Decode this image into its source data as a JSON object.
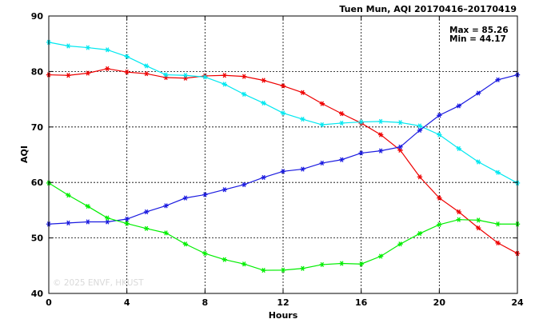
{
  "chart_data": {
    "type": "line",
    "title": "Tuen Mun, AQI 20170416–20170419",
    "stats": [
      "Max = 85.26",
      "Min = 44.17"
    ],
    "xlabel": "Hours",
    "ylabel": "AQI",
    "xlim": [
      0,
      24
    ],
    "ylim": [
      40,
      90
    ],
    "x_ticks": [
      0,
      4,
      8,
      12,
      16,
      20,
      24
    ],
    "y_ticks": [
      40,
      50,
      60,
      70,
      80,
      90
    ],
    "grid": true,
    "grid_style": "dashed",
    "marker": "asterisk",
    "watermark": "© 2025  ENVF, HKUST",
    "x": [
      0,
      1,
      2,
      3,
      4,
      5,
      6,
      7,
      8,
      9,
      10,
      11,
      12,
      13,
      14,
      15,
      16,
      17,
      18,
      19,
      20,
      21,
      22,
      23,
      24
    ],
    "series": [
      {
        "color": "#ee0000",
        "values": [
          79.4,
          79.3,
          79.7,
          80.5,
          79.9,
          79.6,
          78.9,
          78.8,
          79.2,
          79.3,
          79.1,
          78.4,
          77.4,
          76.2,
          74.2,
          72.4,
          70.7,
          68.6,
          65.8,
          61.0,
          57.2,
          54.7,
          51.8,
          49.1,
          47.2
        ]
      },
      {
        "color": "#00e8f0",
        "values": [
          85.26,
          84.6,
          84.3,
          83.9,
          82.7,
          81.0,
          79.4,
          79.3,
          79.0,
          77.7,
          75.9,
          74.3,
          72.5,
          71.4,
          70.4,
          70.7,
          70.9,
          71.0,
          70.8,
          70.2,
          68.6,
          66.1,
          63.7,
          61.8,
          59.9
        ]
      },
      {
        "color": "#1a1ae0",
        "values": [
          52.5,
          52.7,
          52.9,
          52.9,
          53.4,
          54.7,
          55.8,
          57.2,
          57.8,
          58.7,
          59.6,
          60.9,
          62.0,
          62.4,
          63.5,
          64.1,
          65.3,
          65.7,
          66.4,
          69.4,
          72.1,
          73.8,
          76.1,
          78.5,
          79.4
        ]
      },
      {
        "color": "#00ee00",
        "values": [
          59.9,
          57.7,
          55.7,
          53.6,
          52.6,
          51.7,
          50.9,
          48.9,
          47.2,
          46.1,
          45.3,
          44.17,
          44.2,
          44.5,
          45.2,
          45.4,
          45.3,
          46.7,
          48.9,
          50.8,
          52.4,
          53.3,
          53.2,
          52.5,
          52.5
        ]
      }
    ]
  }
}
